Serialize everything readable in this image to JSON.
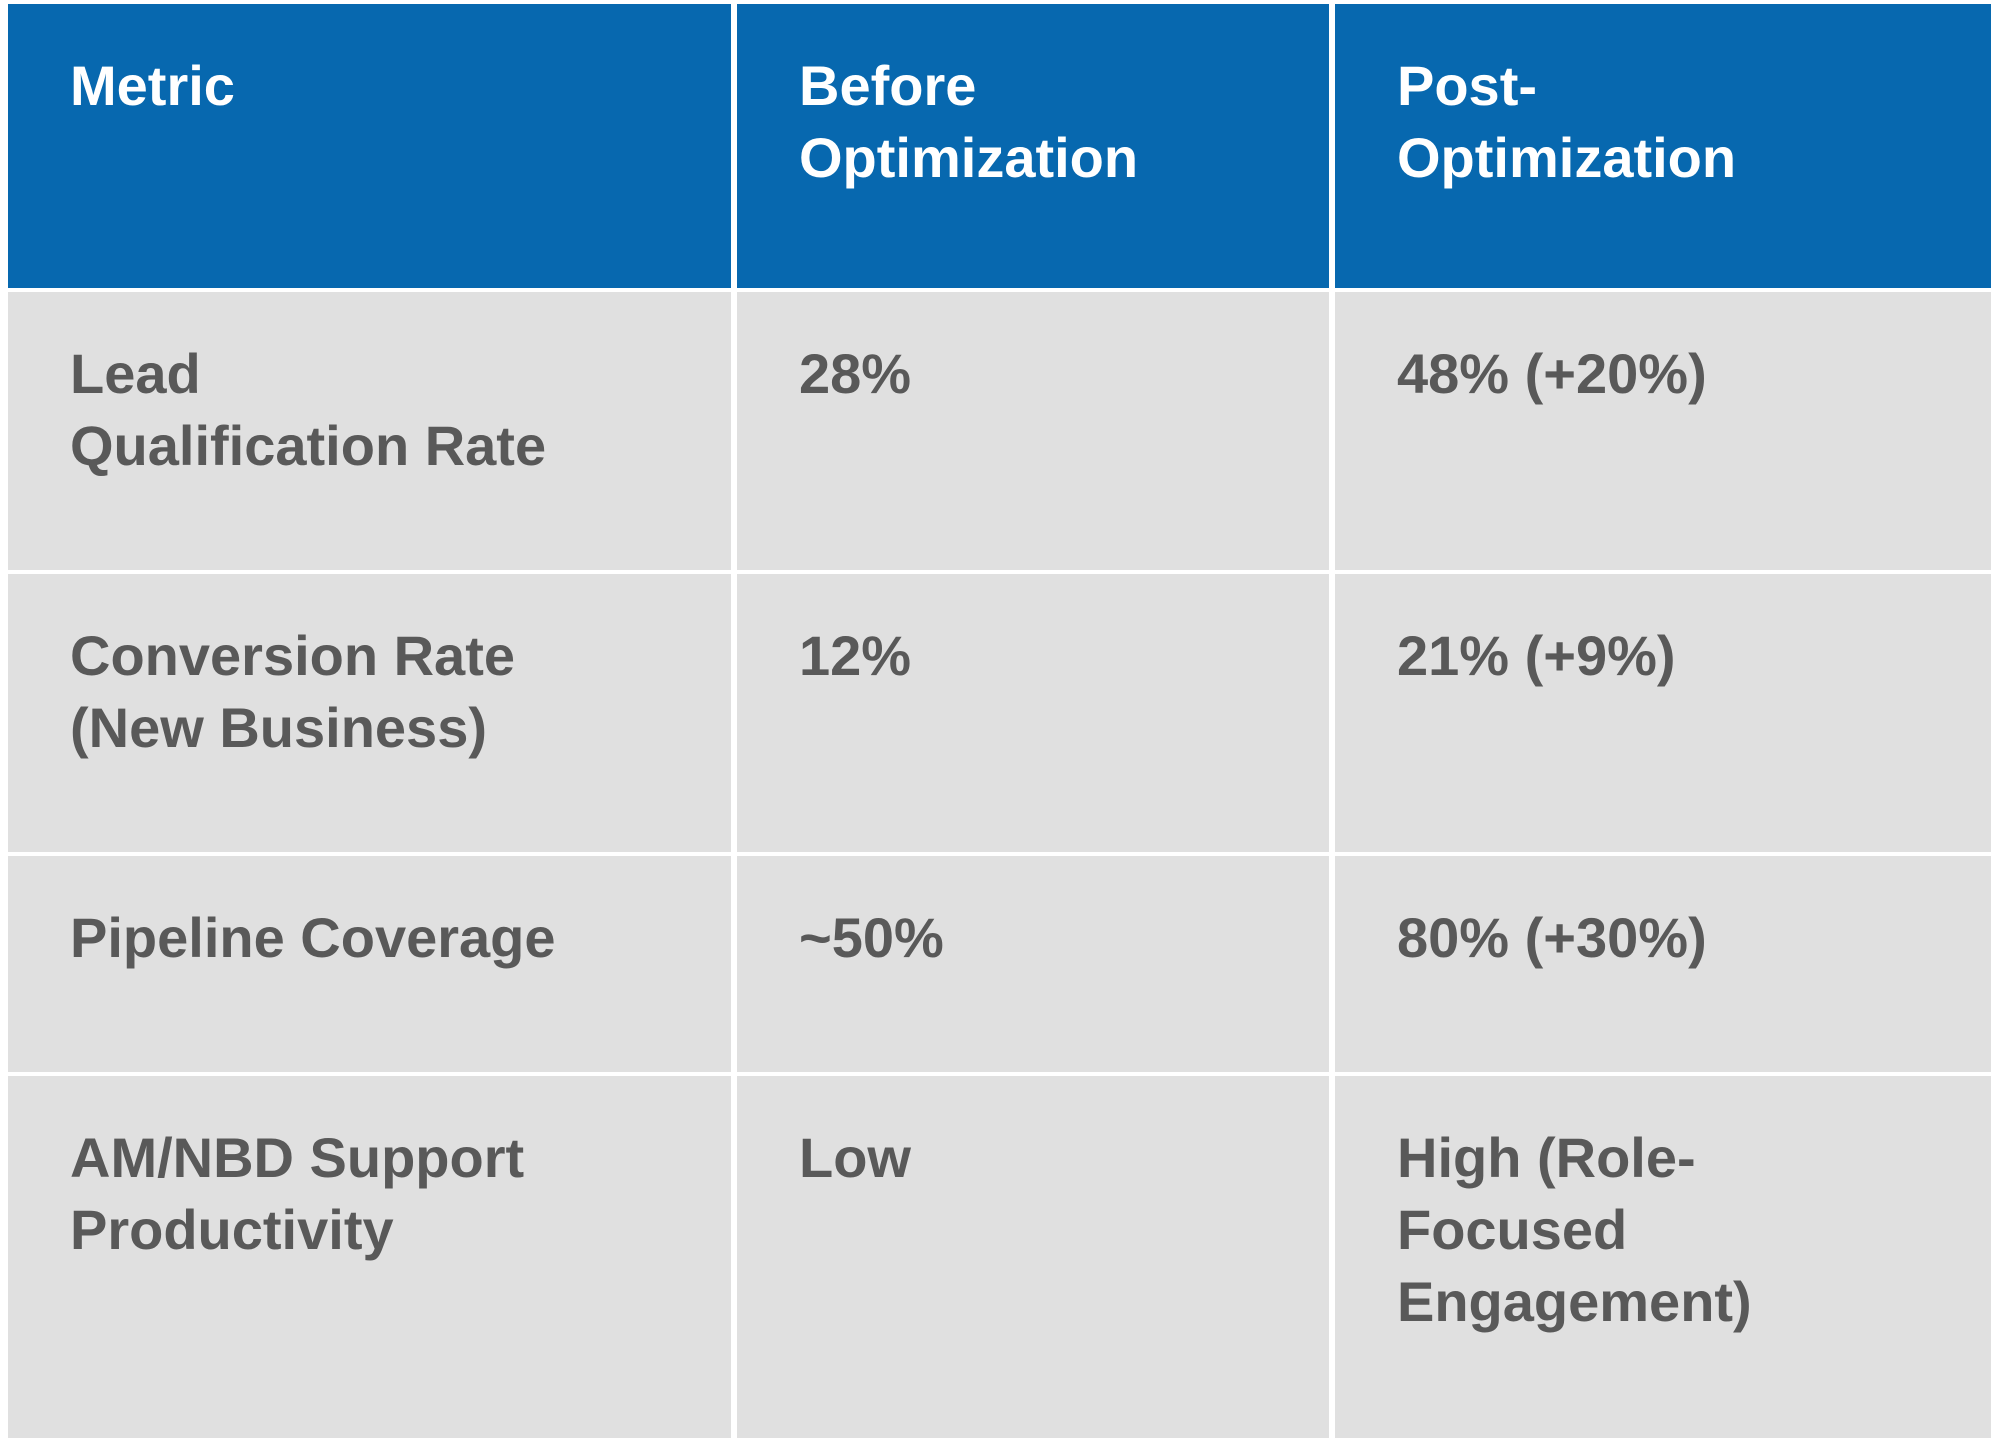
{
  "table": {
    "header": {
      "metric": "Metric",
      "before": "Before\nOptimization",
      "post": "Post-\nOptimization"
    },
    "rows": [
      {
        "metric": "Lead\nQualification Rate",
        "before": "28%",
        "post": "48% (+20%)"
      },
      {
        "metric": "Conversion Rate\n(New Business)",
        "before": "12%",
        "post": "21% (+9%)"
      },
      {
        "metric": "Pipeline Coverage",
        "before": "~50%",
        "post": "80% (+30%)"
      },
      {
        "metric": "AM/NBD Support\nProductivity",
        "before": "Low",
        "post": "High (Role-\nFocused\nEngagement)"
      }
    ],
    "colors": {
      "header_bg": "#0768AF",
      "header_text": "#FFFFFF",
      "body_bg": "#E0E0E0",
      "body_text": "#595959",
      "divider": "#FFFFFF"
    }
  },
  "chart_data": {
    "type": "table",
    "columns": [
      "Metric",
      "Before Optimization",
      "Post-Optimization"
    ],
    "rows": [
      [
        "Lead Qualification Rate",
        "28%",
        "48% (+20%)"
      ],
      [
        "Conversion Rate (New Business)",
        "12%",
        "21% (+9%)"
      ],
      [
        "Pipeline Coverage",
        "~50%",
        "80% (+30%)"
      ],
      [
        "AM/NBD Support Productivity",
        "Low",
        "High (Role-Focused Engagement)"
      ]
    ]
  }
}
